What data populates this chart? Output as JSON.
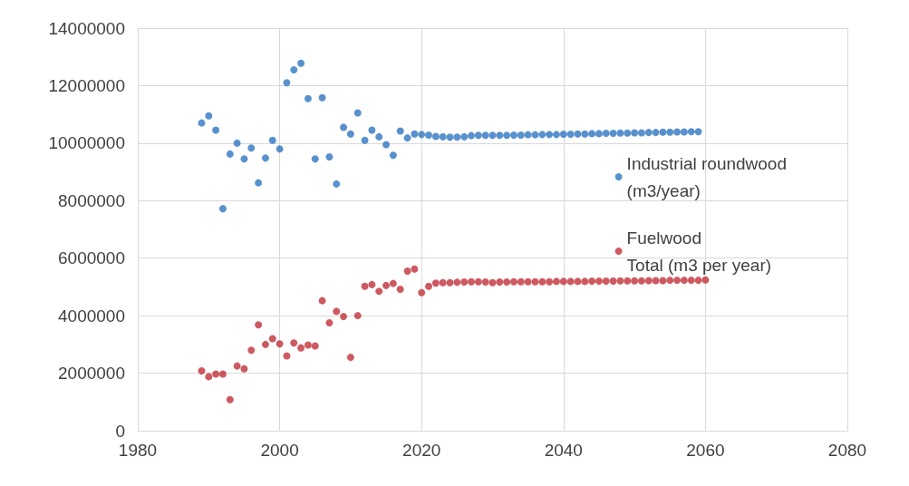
{
  "chart_data": {
    "type": "scatter",
    "xlim": [
      1980,
      2080
    ],
    "xticks": [
      1980,
      2000,
      2020,
      2040,
      2060,
      2080
    ],
    "ylim": [
      0,
      14000000
    ],
    "yticks": [
      0,
      2000000,
      4000000,
      6000000,
      8000000,
      10000000,
      12000000,
      14000000
    ],
    "grid": true,
    "legend": "right",
    "marker": "circle",
    "x": [
      1989,
      1990,
      1991,
      1992,
      1993,
      1994,
      1995,
      1996,
      1997,
      1998,
      1999,
      2000,
      2001,
      2002,
      2003,
      2004,
      2005,
      2006,
      2007,
      2008,
      2009,
      2010,
      2011,
      2012,
      2013,
      2014,
      2015,
      2016,
      2017,
      2018,
      2019,
      2020,
      2021,
      2022,
      2023,
      2024,
      2025,
      2026,
      2027,
      2028,
      2029,
      2030,
      2031,
      2032,
      2033,
      2034,
      2035,
      2036,
      2037,
      2038,
      2039,
      2040,
      2041,
      2042,
      2043,
      2044,
      2045,
      2046,
      2047,
      2048,
      2049,
      2050,
      2051,
      2052,
      2053,
      2054,
      2055,
      2056,
      2057,
      2058,
      2059,
      2060
    ],
    "series": [
      {
        "name": "Industrial roundwood\n(m3/year)",
        "color": "#2e75c0",
        "values": [
          10700000,
          10950000,
          10450000,
          7720000,
          9620000,
          10000000,
          9450000,
          9830000,
          8620000,
          9480000,
          10100000,
          9800000,
          12100000,
          12550000,
          12780000,
          11550000,
          9450000,
          11580000,
          9520000,
          8580000,
          10550000,
          10320000,
          11050000,
          10100000,
          10450000,
          10220000,
          9950000,
          9580000,
          10420000,
          10180000,
          10320000,
          10300000,
          10280000,
          10230000,
          10220000,
          10210000,
          10210000,
          10220000,
          10260000,
          10270000,
          10270000,
          10270000,
          10270000,
          10270000,
          10280000,
          10280000,
          10290000,
          10290000,
          10300000,
          10300000,
          10300000,
          10310000,
          10310000,
          10320000,
          10320000,
          10330000,
          10330000,
          10340000,
          10340000,
          10350000,
          10350000,
          10360000,
          10360000,
          10370000,
          10370000,
          10380000,
          10380000,
          10390000,
          10390000,
          10400000,
          10400000,
          null
        ]
      },
      {
        "name": "Fuelwood\nTotal (m3 per year)",
        "color": "#c0313a",
        "values": [
          2080000,
          1880000,
          1970000,
          1970000,
          1080000,
          2250000,
          2150000,
          2800000,
          3680000,
          3000000,
          3200000,
          3020000,
          2600000,
          3050000,
          2880000,
          2980000,
          2950000,
          4520000,
          3750000,
          4150000,
          3970000,
          2550000,
          4000000,
          5020000,
          5080000,
          4850000,
          5050000,
          5120000,
          4920000,
          5550000,
          5620000,
          4800000,
          5020000,
          5130000,
          5150000,
          5150000,
          5160000,
          5170000,
          5180000,
          5180000,
          5170000,
          5150000,
          5170000,
          5170000,
          5180000,
          5180000,
          5180000,
          5180000,
          5180000,
          5180000,
          5190000,
          5190000,
          5190000,
          5190000,
          5190000,
          5200000,
          5200000,
          5200000,
          5200000,
          5210000,
          5210000,
          5210000,
          5210000,
          5220000,
          5220000,
          5220000,
          5230000,
          5230000,
          5230000,
          5230000,
          5230000,
          5240000
        ]
      }
    ]
  }
}
